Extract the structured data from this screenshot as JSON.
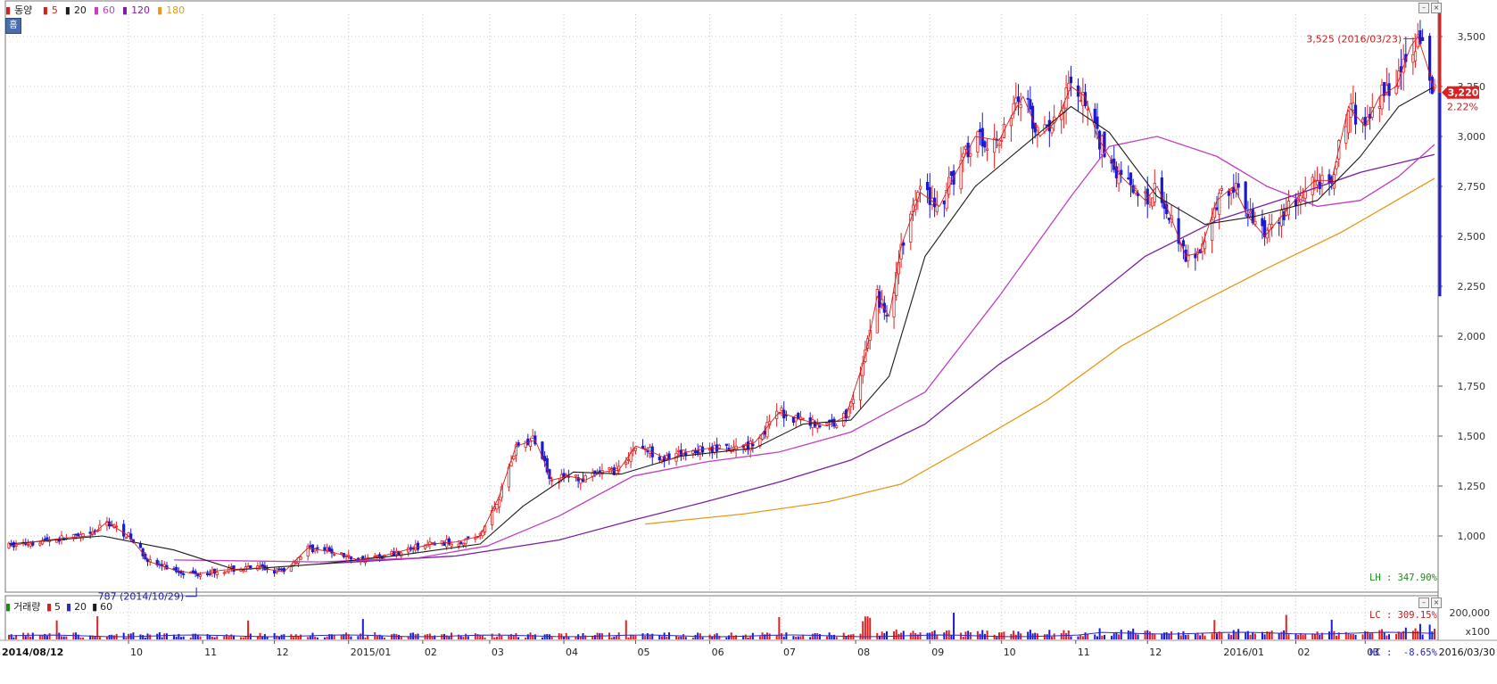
{
  "legend": {
    "name": "동양",
    "items": [
      {
        "label": "5",
        "color": "#d62020"
      },
      {
        "label": "20",
        "color": "#1b1b1b"
      },
      {
        "label": "60",
        "color": "#c040c0"
      },
      {
        "label": "120",
        "color": "#7a1fa2"
      },
      {
        "label": "180",
        "color": "#e59a1b"
      }
    ]
  },
  "home_button": "홈",
  "volume_legend": {
    "name": "거래량",
    "items": [
      {
        "label": "5",
        "color": "#d62020"
      },
      {
        "label": "20",
        "color": "#2b2bcc"
      },
      {
        "label": "60",
        "color": "#1b1b1b"
      }
    ]
  },
  "stats": {
    "lh": "LH : 347.90%",
    "lc": "LC : 309.15%",
    "hc": "HC :  -8.65%"
  },
  "annotations": {
    "high": "3,525 (2016/03/23)",
    "low": "787 (2014/10/29)",
    "price_tag": "3,220",
    "change": "2.22%"
  },
  "x_axis": {
    "start": "2014/08/12",
    "end": "2016/03/30",
    "months": [
      "10",
      "11",
      "12",
      "2015/01",
      "02",
      "03",
      "04",
      "05",
      "06",
      "07",
      "08",
      "09",
      "10",
      "11",
      "12",
      "2016/01",
      "02",
      "03"
    ]
  },
  "volume_axis": {
    "tick": "200,000",
    "unit": "x100"
  },
  "colors": {
    "up": "#e02020",
    "down": "#1a1ad0",
    "grid": "#c8c8c8"
  },
  "chart_data": {
    "type": "candlestick",
    "title": "동양",
    "ylim": [
      800,
      3600
    ],
    "y_ticks": [
      1000,
      1250,
      1500,
      1750,
      2000,
      2250,
      2500,
      2750,
      3000,
      3250,
      3500
    ],
    "y_tick_labels": [
      "1,000",
      "1,250",
      "1,500",
      "1,750",
      "2,000",
      "2,250",
      "2,500",
      "2,750",
      "3,000",
      "3,250",
      "3,500"
    ],
    "grid": true,
    "price_path": [
      [
        "2014/08/12",
        950
      ],
      [
        "2014/08/25",
        975
      ],
      [
        "2014/09/05",
        990
      ],
      [
        "2014/09/15",
        1000
      ],
      [
        "2014/09/22",
        1070
      ],
      [
        "2014/10/01",
        1000
      ],
      [
        "2014/10/10",
        870
      ],
      [
        "2014/10/20",
        830
      ],
      [
        "2014/10/29",
        810
      ],
      [
        "2014/11/10",
        830
      ],
      [
        "2014/11/25",
        840
      ],
      [
        "2014/12/05",
        820
      ],
      [
        "2014/12/15",
        940
      ],
      [
        "2014/12/25",
        920
      ],
      [
        "2015/01/05",
        880
      ],
      [
        "2015/01/15",
        900
      ],
      [
        "2015/01/25",
        930
      ],
      [
        "2015/02/05",
        960
      ],
      [
        "2015/02/15",
        970
      ],
      [
        "2015/02/25",
        1000
      ],
      [
        "2015/03/05",
        1200
      ],
      [
        "2015/03/12",
        1450
      ],
      [
        "2015/03/20",
        1480
      ],
      [
        "2015/03/27",
        1280
      ],
      [
        "2015/04/03",
        1300
      ],
      [
        "2015/04/10",
        1280
      ],
      [
        "2015/04/17",
        1320
      ],
      [
        "2015/04/24",
        1330
      ],
      [
        "2015/05/01",
        1450
      ],
      [
        "2015/05/08",
        1420
      ],
      [
        "2015/05/15",
        1380
      ],
      [
        "2015/05/22",
        1420
      ],
      [
        "2015/06/01",
        1440
      ],
      [
        "2015/06/10",
        1430
      ],
      [
        "2015/06/20",
        1470
      ],
      [
        "2015/06/30",
        1620
      ],
      [
        "2015/07/10",
        1580
      ],
      [
        "2015/07/20",
        1550
      ],
      [
        "2015/07/28",
        1600
      ],
      [
        "2015/08/05",
        1900
      ],
      [
        "2015/08/10",
        2200
      ],
      [
        "2015/08/15",
        2100
      ],
      [
        "2015/08/20",
        2450
      ],
      [
        "2015/08/28",
        2720
      ],
      [
        "2015/09/05",
        2650
      ],
      [
        "2015/09/12",
        2820
      ],
      [
        "2015/09/20",
        3000
      ],
      [
        "2015/09/30",
        2980
      ],
      [
        "2015/10/05",
        3100
      ],
      [
        "2015/10/10",
        3200
      ],
      [
        "2015/10/17",
        3000
      ],
      [
        "2015/10/24",
        3080
      ],
      [
        "2015/10/30",
        3250
      ],
      [
        "2015/11/05",
        3200
      ],
      [
        "2015/11/10",
        3000
      ],
      [
        "2015/11/20",
        2800
      ],
      [
        "2015/11/30",
        2680
      ],
      [
        "2015/12/05",
        2750
      ],
      [
        "2015/12/10",
        2620
      ],
      [
        "2015/12/17",
        2400
      ],
      [
        "2015/12/23",
        2420
      ],
      [
        "2015/12/30",
        2680
      ],
      [
        "2016/01/06",
        2750
      ],
      [
        "2016/01/12",
        2600
      ],
      [
        "2016/01/19",
        2500
      ],
      [
        "2016/01/26",
        2600
      ],
      [
        "2016/02/02",
        2700
      ],
      [
        "2016/02/09",
        2780
      ],
      [
        "2016/02/16",
        2780
      ],
      [
        "2016/02/23",
        3150
      ],
      [
        "2016/03/01",
        3050
      ],
      [
        "2016/03/07",
        3200
      ],
      [
        "2016/03/14",
        3250
      ],
      [
        "2016/03/20",
        3450
      ],
      [
        "2016/03/23",
        3500
      ],
      [
        "2016/03/27",
        3350
      ],
      [
        "2016/03/30",
        3220
      ]
    ],
    "ma20": [
      [
        "2014/08/12",
        960
      ],
      [
        "2014/09/20",
        1000
      ],
      [
        "2014/10/20",
        930
      ],
      [
        "2014/11/15",
        830
      ],
      [
        "2014/12/20",
        860
      ],
      [
        "2015/01/20",
        900
      ],
      [
        "2015/02/25",
        960
      ],
      [
        "2015/03/15",
        1150
      ],
      [
        "2015/04/05",
        1320
      ],
      [
        "2015/04/25",
        1310
      ],
      [
        "2015/05/20",
        1400
      ],
      [
        "2015/06/20",
        1440
      ],
      [
        "2015/07/10",
        1560
      ],
      [
        "2015/07/30",
        1580
      ],
      [
        "2015/08/15",
        1800
      ],
      [
        "2015/08/30",
        2400
      ],
      [
        "2015/09/20",
        2750
      ],
      [
        "2015/10/15",
        3000
      ],
      [
        "2015/10/30",
        3150
      ],
      [
        "2015/11/15",
        3020
      ],
      [
        "2015/12/05",
        2700
      ],
      [
        "2015/12/25",
        2560
      ],
      [
        "2016/01/15",
        2600
      ],
      [
        "2016/02/10",
        2680
      ],
      [
        "2016/02/28",
        2900
      ],
      [
        "2016/03/15",
        3150
      ],
      [
        "2016/03/30",
        3250
      ]
    ],
    "ma60": [
      [
        "2014/10/20",
        880
      ],
      [
        "2014/12/20",
        870
      ],
      [
        "2015/01/30",
        890
      ],
      [
        "2015/02/28",
        950
      ],
      [
        "2015/03/30",
        1100
      ],
      [
        "2015/04/30",
        1300
      ],
      [
        "2015/05/30",
        1370
      ],
      [
        "2015/06/30",
        1420
      ],
      [
        "2015/07/30",
        1520
      ],
      [
        "2015/08/30",
        1720
      ],
      [
        "2015/09/30",
        2200
      ],
      [
        "2015/10/30",
        2700
      ],
      [
        "2015/11/15",
        2950
      ],
      [
        "2015/12/05",
        3000
      ],
      [
        "2015/12/30",
        2900
      ],
      [
        "2016/01/20",
        2750
      ],
      [
        "2016/02/10",
        2650
      ],
      [
        "2016/02/28",
        2680
      ],
      [
        "2016/03/15",
        2800
      ],
      [
        "2016/03/30",
        2960
      ]
    ],
    "ma120": [
      [
        "2014/12/20",
        860
      ],
      [
        "2015/02/15",
        900
      ],
      [
        "2015/03/30",
        980
      ],
      [
        "2015/04/30",
        1080
      ],
      [
        "2015/05/30",
        1170
      ],
      [
        "2015/06/30",
        1270
      ],
      [
        "2015/07/30",
        1380
      ],
      [
        "2015/08/30",
        1560
      ],
      [
        "2015/09/30",
        1860
      ],
      [
        "2015/10/30",
        2100
      ],
      [
        "2015/11/30",
        2400
      ],
      [
        "2015/12/30",
        2580
      ],
      [
        "2016/01/30",
        2700
      ],
      [
        "2016/02/28",
        2820
      ],
      [
        "2016/03/30",
        2910
      ]
    ],
    "ma180": [
      [
        "2015/05/05",
        1060
      ],
      [
        "2015/06/15",
        1110
      ],
      [
        "2015/07/20",
        1170
      ],
      [
        "2015/08/20",
        1260
      ],
      [
        "2015/09/20",
        1470
      ],
      [
        "2015/10/20",
        1680
      ],
      [
        "2015/11/20",
        1950
      ],
      [
        "2015/12/20",
        2150
      ],
      [
        "2016/01/20",
        2340
      ],
      [
        "2016/02/20",
        2520
      ],
      [
        "2016/03/30",
        2790
      ]
    ]
  }
}
